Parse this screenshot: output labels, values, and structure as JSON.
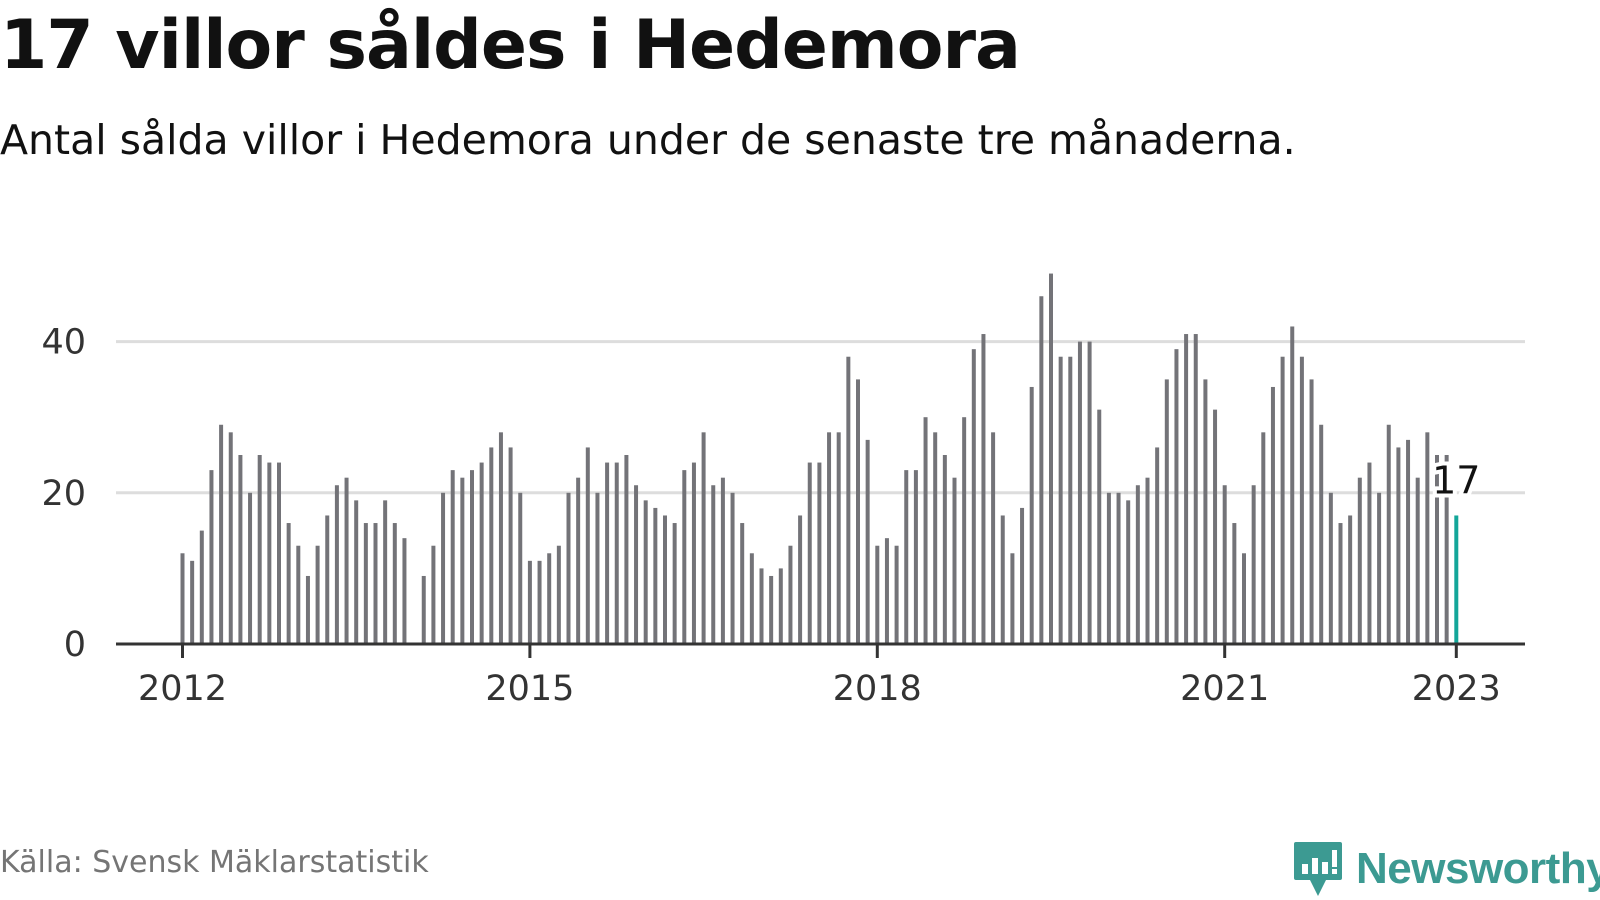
{
  "header": {
    "title": "17 villor såldes i Hedemora",
    "subtitle": "Antal sålda villor i Hedemora under de senaste tre månaderna."
  },
  "footer": {
    "source": "Källa: Svensk Mäklarstatistik",
    "logo_text": "Newsworthy"
  },
  "colors": {
    "bar": "#737378",
    "highlight": "#13a699",
    "grid": "#dddddd",
    "axis": "#333333",
    "brand": "#3c9a92"
  },
  "chart_data": {
    "type": "bar",
    "start": "2012-01",
    "x_ticks": [
      "2012",
      "2015",
      "2018",
      "2021",
      "2023"
    ],
    "ylim": [
      0,
      49
    ],
    "y_ticks": [
      0,
      20,
      40
    ],
    "grid": true,
    "values": [
      12,
      11,
      15,
      23,
      29,
      28,
      25,
      20,
      25,
      24,
      24,
      16,
      13,
      9,
      13,
      17,
      21,
      22,
      19,
      16,
      16,
      19,
      16,
      14,
      null,
      9,
      13,
      20,
      23,
      22,
      23,
      24,
      26,
      28,
      26,
      20,
      11,
      11,
      12,
      13,
      20,
      22,
      26,
      20,
      24,
      24,
      25,
      21,
      19,
      18,
      17,
      16,
      23,
      24,
      28,
      21,
      22,
      20,
      16,
      12,
      10,
      9,
      10,
      13,
      17,
      24,
      24,
      28,
      28,
      38,
      35,
      27,
      13,
      14,
      13,
      23,
      23,
      30,
      28,
      25,
      22,
      30,
      39,
      41,
      28,
      17,
      12,
      18,
      34,
      46,
      49,
      38,
      38,
      40,
      40,
      31,
      20,
      20,
      19,
      21,
      22,
      26,
      35,
      39,
      41,
      41,
      35,
      31,
      21,
      16,
      12,
      21,
      28,
      34,
      38,
      42,
      38,
      35,
      29,
      20,
      16,
      17,
      22,
      24,
      20,
      29,
      26,
      27,
      22,
      28,
      25,
      25,
      17
    ],
    "highlight_last": true,
    "last_value_label": "17"
  }
}
